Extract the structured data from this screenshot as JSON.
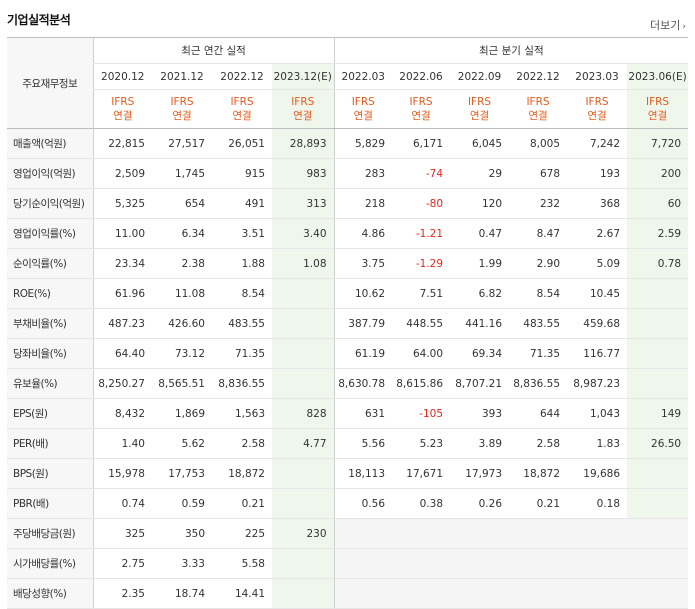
{
  "title": "기업실적분석",
  "more_label": "더보기",
  "header": {
    "row_label": "주요재무정보",
    "annual_label": "최근 연간 실적",
    "quarter_label": "최근 분기 실적",
    "periods": [
      "2020.12",
      "2021.12",
      "2022.12",
      "2023.12(E)",
      "2022.03",
      "2022.06",
      "2022.09",
      "2022.12",
      "2023.03",
      "2023.06(E)"
    ],
    "acc_top": "IFRS",
    "acc_bottom": "연결"
  },
  "rows": [
    {
      "label": "매출액(억원)",
      "values": [
        "22,815",
        "27,517",
        "26,051",
        "28,893",
        "5,829",
        "6,171",
        "6,045",
        "8,005",
        "7,242",
        "7,720"
      ]
    },
    {
      "label": "영업이익(억원)",
      "values": [
        "2,509",
        "1,745",
        "915",
        "983",
        "283",
        "-74",
        "29",
        "678",
        "193",
        "200"
      ]
    },
    {
      "label": "당기순이익(억원)",
      "values": [
        "5,325",
        "654",
        "491",
        "313",
        "218",
        "-80",
        "120",
        "232",
        "368",
        "60"
      ]
    },
    {
      "label": "영업이익률(%)",
      "values": [
        "11.00",
        "6.34",
        "3.51",
        "3.40",
        "4.86",
        "-1.21",
        "0.47",
        "8.47",
        "2.67",
        "2.59"
      ]
    },
    {
      "label": "순이익률(%)",
      "values": [
        "23.34",
        "2.38",
        "1.88",
        "1.08",
        "3.75",
        "-1.29",
        "1.99",
        "2.90",
        "5.09",
        "0.78"
      ]
    },
    {
      "label": "ROE(%)",
      "values": [
        "61.96",
        "11.08",
        "8.54",
        "",
        "10.62",
        "7.51",
        "6.82",
        "8.54",
        "10.45",
        ""
      ]
    },
    {
      "label": "부채비율(%)",
      "values": [
        "487.23",
        "426.60",
        "483.55",
        "",
        "387.79",
        "448.55",
        "441.16",
        "483.55",
        "459.68",
        ""
      ]
    },
    {
      "label": "당좌비율(%)",
      "values": [
        "64.40",
        "73.12",
        "71.35",
        "",
        "61.19",
        "64.00",
        "69.34",
        "71.35",
        "116.77",
        ""
      ]
    },
    {
      "label": "유보율(%)",
      "values": [
        "8,250.27",
        "8,565.51",
        "8,836.55",
        "",
        "8,630.78",
        "8,615.86",
        "8,707.21",
        "8,836.55",
        "8,987.23",
        ""
      ]
    },
    {
      "label": "EPS(원)",
      "values": [
        "8,432",
        "1,869",
        "1,563",
        "828",
        "631",
        "-105",
        "393",
        "644",
        "1,043",
        "149"
      ]
    },
    {
      "label": "PER(배)",
      "values": [
        "1.40",
        "5.62",
        "2.58",
        "4.77",
        "5.56",
        "5.23",
        "3.89",
        "2.58",
        "1.83",
        "26.50"
      ]
    },
    {
      "label": "BPS(원)",
      "values": [
        "15,978",
        "17,753",
        "18,872",
        "",
        "18,113",
        "17,671",
        "17,973",
        "18,872",
        "19,686",
        ""
      ]
    },
    {
      "label": "PBR(배)",
      "values": [
        "0.74",
        "0.59",
        "0.21",
        "",
        "0.56",
        "0.38",
        "0.26",
        "0.21",
        "0.18",
        ""
      ]
    },
    {
      "label": "주당배당금(원)",
      "values": [
        "325",
        "350",
        "225",
        "230",
        "",
        "",
        "",
        "",
        "",
        ""
      ]
    },
    {
      "label": "시가배당률(%)",
      "values": [
        "2.75",
        "3.33",
        "5.58",
        "",
        "",
        "",
        "",
        "",
        "",
        ""
      ]
    },
    {
      "label": "배당성향(%)",
      "values": [
        "2.35",
        "18.74",
        "14.41",
        "",
        "",
        "",
        "",
        "",
        "",
        ""
      ]
    }
  ],
  "colors": {
    "accounting": "#e45a1c",
    "negative": "#e0271f",
    "estimate_bg": "#eff7ec",
    "label_bg": "#f7f7f7"
  }
}
